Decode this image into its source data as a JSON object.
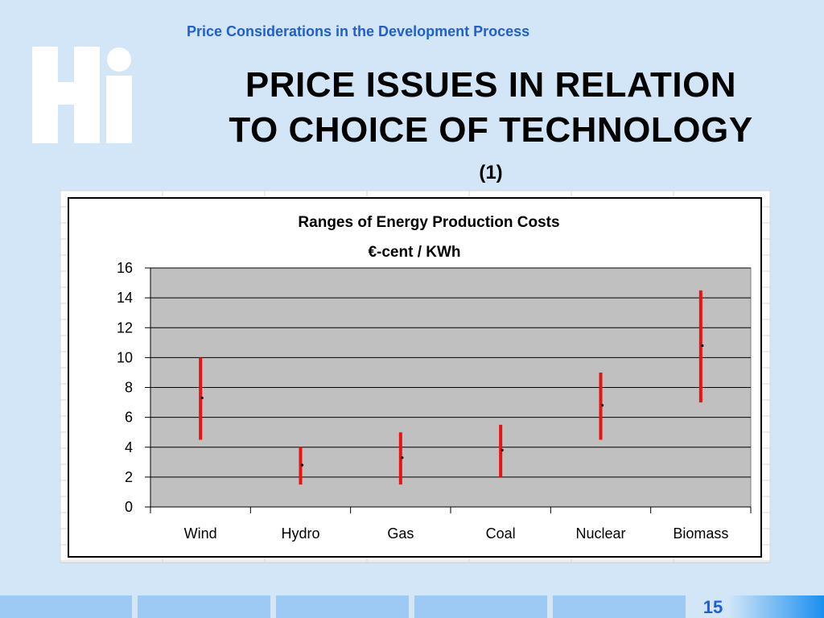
{
  "slide": {
    "header": "Price Considerations in the Development Process",
    "title_line1": "PRICE ISSUES IN RELATION",
    "title_line2": "TO CHOICE OF TECHNOLOGY",
    "subtitle": "(1)",
    "page_number": "15"
  },
  "colors": {
    "background": "#d2e6f8",
    "accent": "#1f5fd6",
    "logo": "#ffffff",
    "range_bar": "#ee1111",
    "plot_area": "#c0c0c0",
    "footer_block": "#9ccaf5"
  },
  "chart_data": {
    "type": "range",
    "title": "Ranges of Energy Production Costs",
    "subtitle": "€-cent / KWh",
    "categories": [
      "Wind",
      "Hydro",
      "Gas",
      "Coal",
      "Nuclear",
      "Biomass"
    ],
    "low": [
      4.5,
      1.5,
      1.5,
      2.0,
      4.5,
      7.0
    ],
    "high": [
      10.0,
      4.0,
      5.0,
      5.5,
      9.0,
      14.5
    ],
    "mid": [
      7.3,
      2.8,
      3.3,
      3.8,
      6.8,
      10.8
    ],
    "ylim": [
      0,
      16
    ],
    "yticks": [
      "0",
      "2",
      "4",
      "6",
      "8",
      "10",
      "12",
      "14",
      "16"
    ],
    "grid": true,
    "legend": "none"
  }
}
